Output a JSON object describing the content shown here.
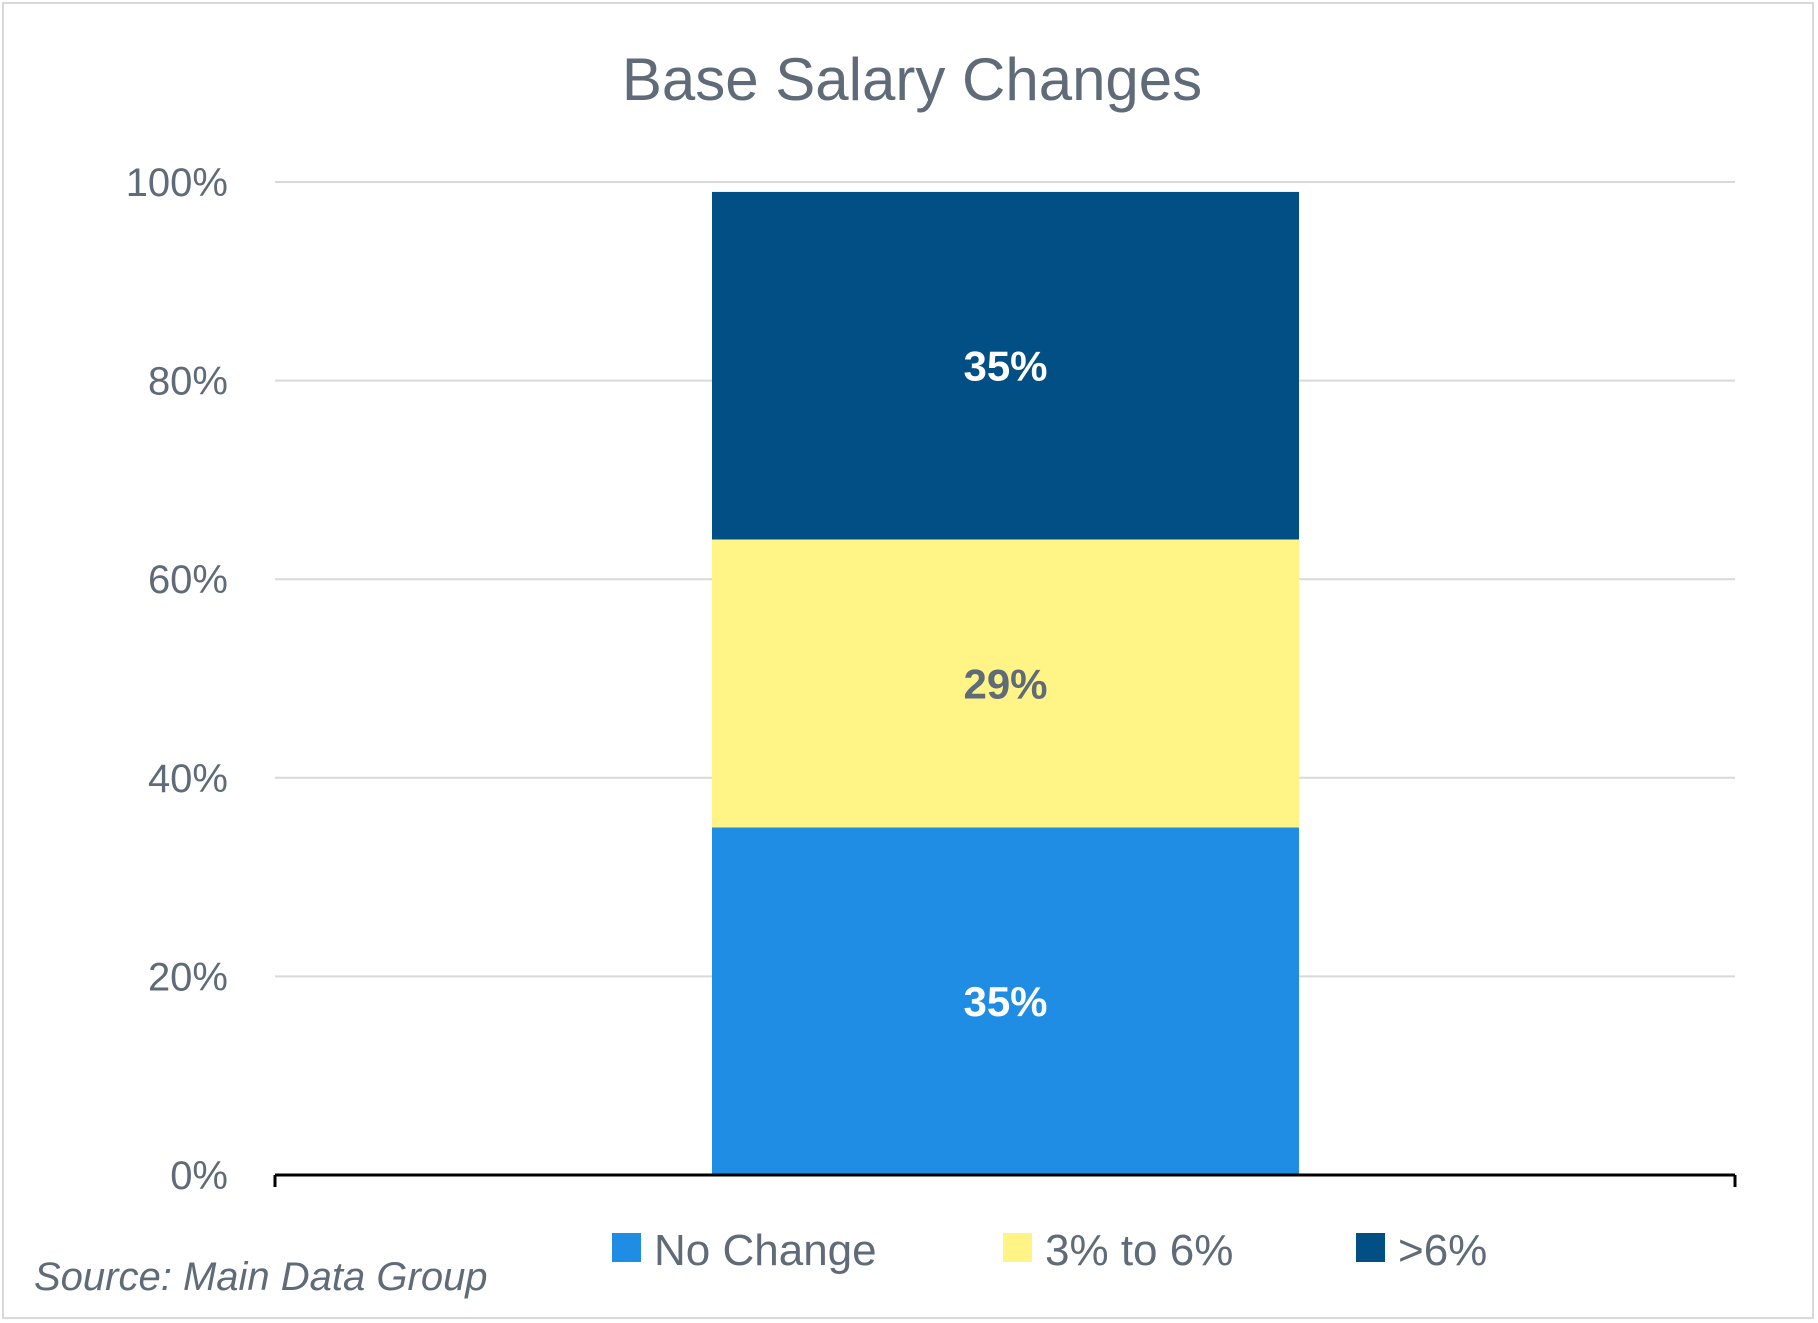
{
  "chart_data": {
    "type": "bar",
    "stacked": true,
    "title": "Base Salary Changes",
    "xlabel": "",
    "ylabel": "",
    "ylim": [
      0,
      100
    ],
    "y_ticks": [
      "0%",
      "20%",
      "40%",
      "60%",
      "80%",
      "100%"
    ],
    "y_tick_values": [
      0,
      20,
      40,
      60,
      80,
      100
    ],
    "grid": true,
    "legend_position": "bottom",
    "series": [
      {
        "name": "No Change",
        "values": [
          35
        ],
        "label": "35%",
        "color": "#1f8de4",
        "label_color": "#ffffff"
      },
      {
        "name": "3% to 6%",
        "values": [
          29
        ],
        "label": "29%",
        "color": "#fff485",
        "label_color": "#5f6b78"
      },
      {
        "name": ">6%",
        "values": [
          35
        ],
        "label": "35%",
        "color": "#024f86",
        "label_color": "#ffffff"
      }
    ],
    "source": "Source: Main Data Group"
  }
}
